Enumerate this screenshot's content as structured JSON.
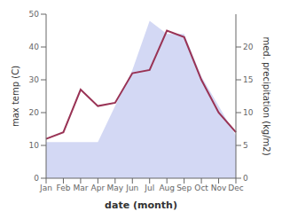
{
  "chart_data": {
    "type": "line",
    "categories": [
      "Jan",
      "Feb",
      "Mar",
      "Apr",
      "May",
      "Jun",
      "Jul",
      "Aug",
      "Sep",
      "Oct",
      "Nov",
      "Dec"
    ],
    "xlabel": "date (month)",
    "ylabel": "max temp (C)",
    "y2label": "med. precipitation (kg/m2)",
    "ylim": [
      0,
      50
    ],
    "yticks": [
      0,
      10,
      20,
      30,
      40,
      50
    ],
    "y2lim": [
      0,
      25
    ],
    "y2ticks": [
      0,
      5,
      10,
      15,
      20
    ],
    "grid": false,
    "series": [
      {
        "type": "area",
        "color": "#c0c8f0",
        "values": [
          11,
          11,
          11,
          11,
          22,
          33,
          48,
          44,
          44,
          31,
          22,
          13
        ]
      },
      {
        "type": "line",
        "color": "#993355",
        "values": [
          12,
          14,
          27,
          22,
          23,
          32,
          33,
          45,
          43,
          30,
          20,
          14
        ]
      }
    ]
  }
}
